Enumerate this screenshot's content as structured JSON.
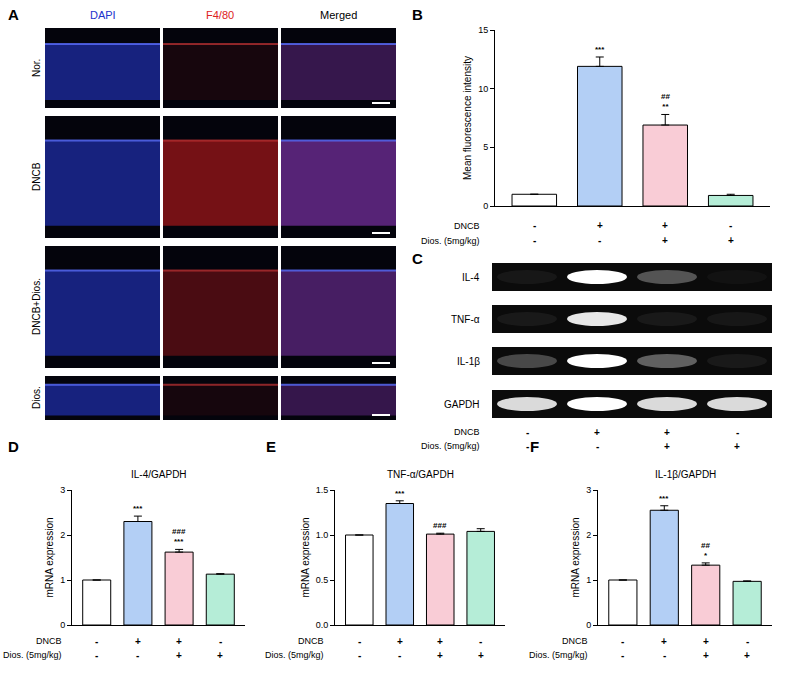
{
  "chart_data": [
    {
      "panel": "B",
      "type": "bar",
      "y_label": "Mean fluorescence intensity",
      "categories": [
        null,
        null,
        null,
        null
      ],
      "values": [
        1.0,
        11.9,
        6.9,
        0.9
      ],
      "errors": [
        0.0,
        0.8,
        0.9,
        0.1
      ],
      "colors": [
        "#ffffff",
        "#b3cff5",
        "#f9ccd6",
        "#b5edd7"
      ],
      "ylim": [
        0,
        15
      ],
      "yticks": [
        0,
        5,
        10,
        15
      ],
      "tick_labels": "y",
      "significance_vs_control": [
        null,
        "***",
        "**",
        null
      ],
      "significance_vs_dncb": [
        null,
        null,
        "##",
        null
      ],
      "treatments": [
        {
          "label": "DNCB",
          "marks": [
            "-",
            "+",
            "+",
            "-"
          ]
        },
        {
          "label": "Dios. (5mg/kg)",
          "marks": [
            "-",
            "-",
            "+",
            "+"
          ]
        }
      ]
    },
    {
      "panel": "D",
      "type": "bar",
      "title": "IL-4/GAPDH",
      "y_label": "mRNA expression",
      "categories": [
        null,
        null,
        null,
        null
      ],
      "values": [
        1.0,
        2.3,
        1.62,
        1.13
      ],
      "errors": [
        0.0,
        0.12,
        0.06,
        0.01
      ],
      "colors": [
        "#ffffff",
        "#b3cff5",
        "#f9ccd6",
        "#b5edd7"
      ],
      "ylim": [
        0,
        3
      ],
      "yticks": [
        0,
        1,
        2,
        3
      ],
      "tick_labels": "y",
      "significance_vs_control": [
        null,
        "***",
        "***",
        null
      ],
      "significance_vs_dncb": [
        null,
        null,
        "###",
        null
      ],
      "treatments": [
        {
          "label": "DNCB",
          "marks": [
            "-",
            "+",
            "+",
            "-"
          ]
        },
        {
          "label": "Dios. (5mg/kg)",
          "marks": [
            "-",
            "-",
            "+",
            "+"
          ]
        }
      ]
    },
    {
      "panel": "E",
      "type": "bar",
      "title": "TNF-α/GAPDH",
      "y_label": "mRNA expression",
      "categories": [
        null,
        null,
        null,
        null
      ],
      "values": [
        1.0,
        1.35,
        1.01,
        1.04
      ],
      "errors": [
        0.0,
        0.03,
        0.01,
        0.03
      ],
      "colors": [
        "#ffffff",
        "#b3cff5",
        "#f9ccd6",
        "#b5edd7"
      ],
      "ylim": [
        0,
        1.5
      ],
      "yticks": [
        {
          "value": 0,
          "label": "0.0"
        },
        {
          "value": 0.5,
          "label": "0.5"
        },
        {
          "value": 1,
          "label": "1.0"
        },
        {
          "value": 1.5,
          "label": "1.5"
        }
      ],
      "tick_labels": "y",
      "significance_vs_control": [
        null,
        "***",
        null,
        null
      ],
      "significance_vs_dncb": [
        null,
        null,
        "###",
        null
      ],
      "treatments": [
        {
          "label": "DNCB",
          "marks": [
            "-",
            "+",
            "+",
            "-"
          ]
        },
        {
          "label": "Dios. (5mg/kg)",
          "marks": [
            "-",
            "-",
            "+",
            "+"
          ]
        }
      ]
    },
    {
      "panel": "F",
      "type": "bar",
      "title": "IL-1β/GAPDH",
      "y_label": "mRNA expression",
      "categories": [
        null,
        null,
        null,
        null
      ],
      "values": [
        1.0,
        2.55,
        1.33,
        0.97
      ],
      "errors": [
        0.0,
        0.1,
        0.05,
        0.01
      ],
      "colors": [
        "#ffffff",
        "#b3cff5",
        "#f9ccd6",
        "#b5edd7"
      ],
      "ylim": [
        0,
        3
      ],
      "yticks": [
        0,
        1,
        2,
        3
      ],
      "tick_labels": "y",
      "significance_vs_control": [
        null,
        "***",
        "*",
        null
      ],
      "significance_vs_dncb": [
        null,
        null,
        "##",
        null
      ],
      "treatments": [
        {
          "label": "DNCB",
          "marks": [
            "-",
            "+",
            "+",
            "-"
          ]
        },
        {
          "label": "Dios. (5mg/kg)",
          "marks": [
            "-",
            "-",
            "+",
            "+"
          ]
        }
      ]
    }
  ],
  "image_panel": {
    "panel": "A",
    "channels": [
      {
        "label": "DAPI",
        "color": "#2233cc"
      },
      {
        "label": "F4/80",
        "color": "#dd2222"
      },
      {
        "label": "Merged",
        "color": "#000000"
      }
    ],
    "rows": [
      "Nor.",
      "DNCB",
      "DNCB+Dios.",
      "Dios."
    ]
  },
  "gel_panel": {
    "panel": "C",
    "bands": [
      {
        "label": "IL-4",
        "intensities": [
          0.05,
          1.0,
          0.3,
          0.03
        ]
      },
      {
        "label": "TNF-α",
        "intensities": [
          0.06,
          0.9,
          0.06,
          0.05
        ]
      },
      {
        "label": "IL-1β",
        "intensities": [
          0.25,
          1.0,
          0.35,
          0.06
        ]
      },
      {
        "label": "GAPDH",
        "intensities": [
          0.85,
          1.0,
          0.85,
          0.85
        ]
      }
    ],
    "treatments": [
      {
        "label": "DNCB",
        "marks": [
          "-",
          "+",
          "+",
          "-"
        ]
      },
      {
        "label": "Dios. (5mg/kg)",
        "marks": [
          "-",
          "-",
          "+",
          "+"
        ]
      }
    ]
  }
}
